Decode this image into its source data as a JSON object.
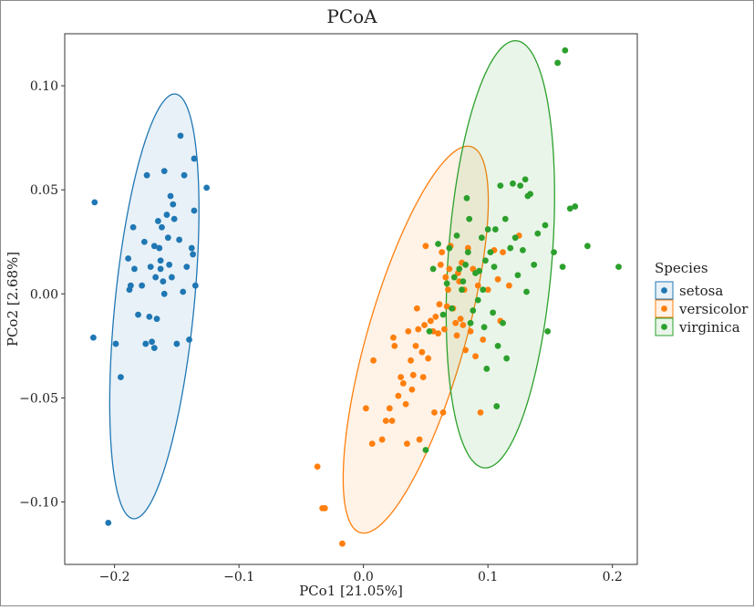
{
  "chart_data": {
    "type": "scatter",
    "title": "PCoA",
    "xlabel": "PCo1 [21.05%]",
    "ylabel": "PCo2 [2.68%]",
    "xlim": [
      -0.24,
      0.22
    ],
    "ylim": [
      -0.13,
      0.125
    ],
    "xticks": [
      -0.2,
      -0.1,
      0.0,
      0.1,
      0.2
    ],
    "xtick_labels": [
      "−0.2",
      "−0.1",
      "0.0",
      "0.1",
      "0.2"
    ],
    "yticks": [
      -0.1,
      -0.05,
      0.0,
      0.05,
      0.1
    ],
    "ytick_labels": [
      "−0.10",
      "−0.05",
      "0.00",
      "0.05",
      "0.10"
    ],
    "grid": false,
    "legend": {
      "title": "Species",
      "position": "right"
    },
    "series": [
      {
        "name": "setosa",
        "color": "#1f77b4",
        "ellipse": {
          "cx": -0.168,
          "cy": -0.006,
          "rx": 0.0315,
          "ry": 0.1035,
          "angle_deg": 80
        },
        "points": [
          [
            -0.216,
            0.044
          ],
          [
            -0.217,
            -0.021
          ],
          [
            -0.205,
            -0.11
          ],
          [
            -0.195,
            -0.04
          ],
          [
            -0.199,
            -0.024
          ],
          [
            -0.188,
            0.002
          ],
          [
            -0.187,
            0.004
          ],
          [
            -0.184,
            0.012
          ],
          [
            -0.189,
            0.017
          ],
          [
            -0.185,
            0.032
          ],
          [
            -0.181,
            -0.01
          ],
          [
            -0.178,
            0.004
          ],
          [
            -0.176,
            0.025
          ],
          [
            -0.175,
            -0.024
          ],
          [
            -0.172,
            -0.011
          ],
          [
            -0.171,
            0.013
          ],
          [
            -0.17,
            -0.023
          ],
          [
            -0.168,
            -0.026
          ],
          [
            -0.168,
            0.023
          ],
          [
            -0.167,
            0.008
          ],
          [
            -0.166,
            -0.012
          ],
          [
            -0.165,
            0.035
          ],
          [
            -0.164,
            0.022
          ],
          [
            -0.163,
            0.016
          ],
          [
            -0.162,
            0.032
          ],
          [
            -0.161,
            0.006
          ],
          [
            -0.16,
            0.0
          ],
          [
            -0.16,
            0.059
          ],
          [
            -0.158,
            0.038
          ],
          [
            -0.157,
            0.027
          ],
          [
            -0.156,
            0.014
          ],
          [
            -0.155,
            0.047
          ],
          [
            -0.154,
            0.008
          ],
          [
            -0.153,
            0.043
          ],
          [
            -0.152,
            0.036
          ],
          [
            -0.15,
            -0.024
          ],
          [
            -0.148,
            0.026
          ],
          [
            -0.147,
            0.076
          ],
          [
            -0.145,
            0.001
          ],
          [
            -0.144,
            0.057
          ],
          [
            -0.142,
            0.013
          ],
          [
            -0.138,
            0.022
          ],
          [
            -0.137,
            0.019
          ],
          [
            -0.136,
            0.04
          ],
          [
            -0.136,
            0.065
          ],
          [
            -0.135,
            0.004
          ],
          [
            -0.14,
            -0.022
          ],
          [
            -0.126,
            0.051
          ],
          [
            -0.174,
            0.057
          ],
          [
            -0.163,
            0.012
          ]
        ]
      },
      {
        "name": "versicolor",
        "color": "#ff7f0e",
        "ellipse": {
          "cx": 0.042,
          "cy": -0.022,
          "rx": 0.0365,
          "ry": 0.1035,
          "angle_deg": 62
        },
        "points": [
          [
            -0.037,
            -0.083
          ],
          [
            -0.033,
            -0.103
          ],
          [
            -0.031,
            -0.103
          ],
          [
            -0.017,
            -0.12
          ],
          [
            0.002,
            -0.055
          ],
          [
            0.007,
            -0.072
          ],
          [
            0.008,
            -0.032
          ],
          [
            0.015,
            -0.07
          ],
          [
            0.018,
            -0.061
          ],
          [
            0.021,
            -0.055
          ],
          [
            0.023,
            -0.061
          ],
          [
            0.024,
            -0.021
          ],
          [
            0.025,
            -0.025
          ],
          [
            0.028,
            -0.049
          ],
          [
            0.03,
            -0.04
          ],
          [
            0.032,
            -0.043
          ],
          [
            0.034,
            -0.053
          ],
          [
            0.035,
            -0.072
          ],
          [
            0.036,
            -0.018
          ],
          [
            0.038,
            -0.032
          ],
          [
            0.039,
            -0.046
          ],
          [
            0.04,
            -0.039
          ],
          [
            0.042,
            -0.025
          ],
          [
            0.043,
            -0.007
          ],
          [
            0.044,
            -0.017
          ],
          [
            0.045,
            -0.07
          ],
          [
            0.047,
            -0.028
          ],
          [
            0.048,
            -0.04
          ],
          [
            0.049,
            -0.015
          ],
          [
            0.05,
            0.023
          ],
          [
            0.052,
            -0.031
          ],
          [
            0.054,
            -0.013
          ],
          [
            0.056,
            -0.018
          ],
          [
            0.057,
            -0.057
          ],
          [
            0.058,
            -0.011
          ],
          [
            0.06,
            -0.019
          ],
          [
            0.061,
            -0.005
          ],
          [
            0.062,
            0.014
          ],
          [
            0.063,
            0.02
          ],
          [
            0.064,
            -0.057
          ],
          [
            0.065,
            -0.017
          ],
          [
            0.066,
            0.008
          ],
          [
            0.067,
            -0.006
          ],
          [
            0.068,
            0.002
          ],
          [
            0.069,
            0.012
          ],
          [
            0.07,
            0.023
          ],
          [
            0.072,
            -0.007
          ],
          [
            0.074,
            -0.014
          ],
          [
            0.075,
            -0.02
          ],
          [
            0.076,
            0.01
          ],
          [
            0.077,
            0.006
          ],
          [
            0.078,
            -0.012
          ],
          [
            0.079,
            0.015
          ],
          [
            0.08,
            -0.015
          ],
          [
            0.081,
            0.002
          ],
          [
            0.082,
            -0.027
          ],
          [
            0.084,
            0.022
          ],
          [
            0.086,
            -0.018
          ],
          [
            0.088,
            0.012
          ],
          [
            0.09,
            -0.03
          ],
          [
            0.092,
            0.004
          ],
          [
            0.094,
            -0.057
          ],
          [
            0.096,
            -0.022
          ],
          [
            0.1,
            0.002
          ],
          [
            0.105,
            0.021
          ],
          [
            0.108,
            0.007
          ],
          [
            0.11,
            -0.013
          ],
          [
            0.112,
            0.02
          ],
          [
            0.117,
            0.004
          ],
          [
            0.125,
            0.028
          ]
        ]
      },
      {
        "name": "virginica",
        "color": "#2ca02c",
        "ellipse": {
          "cx": 0.11,
          "cy": 0.019,
          "rx": 0.0415,
          "ry": 0.1035,
          "angle_deg": 82
        },
        "points": [
          [
            0.05,
            -0.075
          ],
          [
            0.053,
            -0.018
          ],
          [
            0.056,
            0.012
          ],
          [
            0.06,
            0.024
          ],
          [
            0.064,
            -0.01
          ],
          [
            0.067,
            0.005
          ],
          [
            0.069,
            0.022
          ],
          [
            0.071,
            -0.007
          ],
          [
            0.073,
            0.008
          ],
          [
            0.075,
            0.028
          ],
          [
            0.077,
            0.012
          ],
          [
            0.079,
            0.002
          ],
          [
            0.08,
            0.006
          ],
          [
            0.082,
            0.014
          ],
          [
            0.083,
            0.046
          ],
          [
            0.084,
            0.02
          ],
          [
            0.085,
            0.036
          ],
          [
            0.086,
            -0.014
          ],
          [
            0.088,
            -0.008
          ],
          [
            0.09,
            0.01
          ],
          [
            0.092,
            -0.003
          ],
          [
            0.093,
            0.011
          ],
          [
            0.095,
            0.027
          ],
          [
            0.096,
            0.002
          ],
          [
            0.097,
            -0.016
          ],
          [
            0.098,
            0.016
          ],
          [
            0.099,
            -0.036
          ],
          [
            0.1,
            0.031
          ],
          [
            0.102,
            0.02
          ],
          [
            0.104,
            -0.009
          ],
          [
            0.105,
            0.013
          ],
          [
            0.106,
            0.031
          ],
          [
            0.107,
            -0.054
          ],
          [
            0.108,
            -0.025
          ],
          [
            0.11,
            0.052
          ],
          [
            0.112,
            -0.014
          ],
          [
            0.114,
            0.036
          ],
          [
            0.115,
            -0.031
          ],
          [
            0.118,
            0.022
          ],
          [
            0.12,
            0.053
          ],
          [
            0.122,
            0.027
          ],
          [
            0.124,
            0.009
          ],
          [
            0.126,
            0.052
          ],
          [
            0.128,
            0.021
          ],
          [
            0.13,
            0.055
          ],
          [
            0.131,
            0.001
          ],
          [
            0.132,
            0.047
          ],
          [
            0.134,
            0.048
          ],
          [
            0.137,
            0.014
          ],
          [
            0.14,
            0.029
          ],
          [
            0.146,
            0.033
          ],
          [
            0.148,
            -0.018
          ],
          [
            0.153,
            0.02
          ],
          [
            0.156,
            0.111
          ],
          [
            0.16,
            0.013
          ],
          [
            0.162,
            0.117
          ],
          [
            0.166,
            0.041
          ],
          [
            0.17,
            0.042
          ],
          [
            0.18,
            0.023
          ],
          [
            0.205,
            0.013
          ]
        ]
      }
    ]
  }
}
